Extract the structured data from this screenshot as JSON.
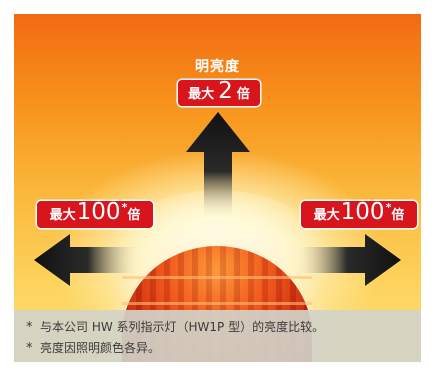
{
  "top_label": {
    "title": "明亮度",
    "prefix": "最大",
    "value": "2",
    "unit": "倍"
  },
  "side_labels": [
    {
      "prefix": "最大",
      "value": "100",
      "mark": "*",
      "unit": "倍"
    },
    {
      "prefix": "最大",
      "value": "100",
      "mark": "*",
      "unit": "倍"
    }
  ],
  "notes": [
    {
      "mark": "*",
      "text": "与本公司 HW 系列指示灯（HW1P 型）的亮度比较。"
    },
    {
      "mark": "*",
      "text": "亮度因照明颜色各异。"
    }
  ],
  "colors": {
    "badge": "#d8141c",
    "background_top": "#f26a12",
    "background_bottom": "#fde07a",
    "lamp": "#e8401a",
    "arrow": "#1a1a1a"
  },
  "icons": {
    "up": "arrow-up-icon",
    "left": "arrow-left-icon",
    "right": "arrow-right-icon"
  }
}
